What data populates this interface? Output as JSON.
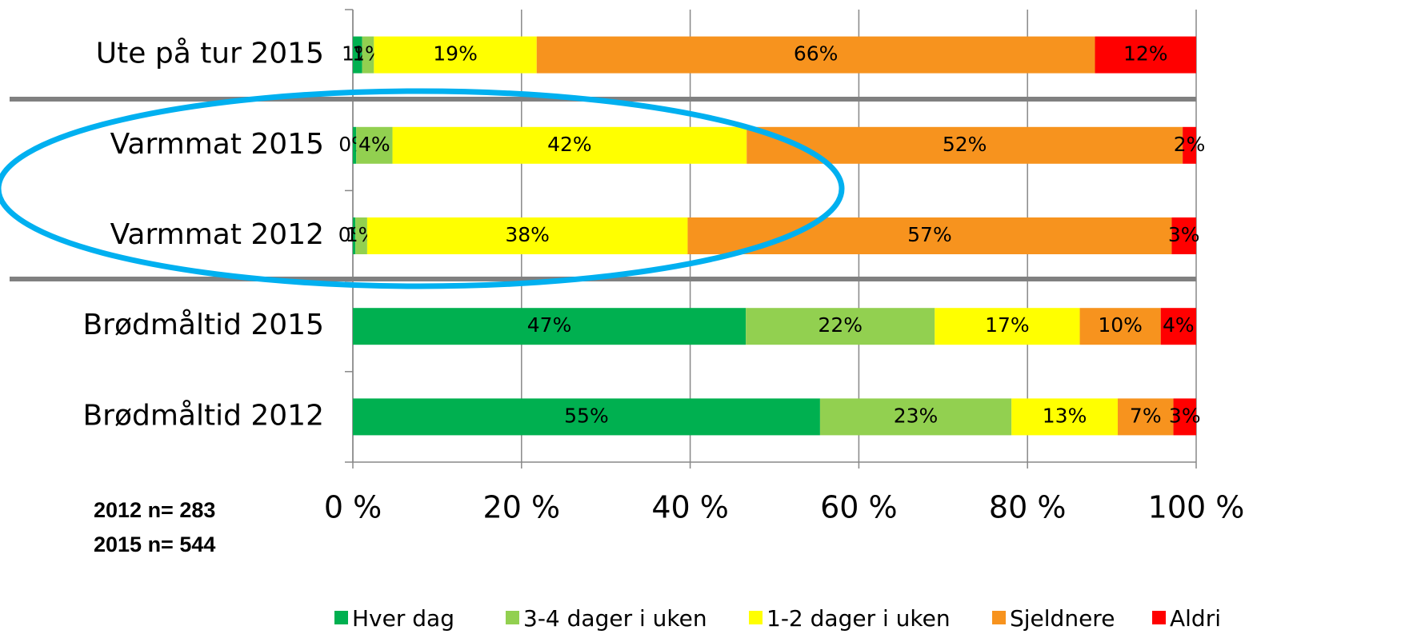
{
  "chart_data": {
    "type": "stacked_bar_horizontal",
    "categories": [
      "Ute på tur 2015",
      "Varmmat 2015",
      "Varmmat 2012",
      "Brødmåltid 2015",
      "Brødmåltid 2012"
    ],
    "series": [
      {
        "name": "Hver dag",
        "color": "#00b050",
        "values": [
          1.1,
          0.4,
          0.3,
          46.6,
          55.4
        ],
        "value_labels": [
          "1%",
          "0%",
          "0%",
          "47%",
          "55%"
        ]
      },
      {
        "name": "3-4 dager i uken",
        "color": "#92d050",
        "values": [
          1.4,
          4.3,
          1.4,
          22.4,
          22.7
        ],
        "value_labels": [
          "1%",
          "4%",
          "1%",
          "22%",
          "23%"
        ]
      },
      {
        "name": "1-2 dager i uken",
        "color": "#ffff00",
        "values": [
          19.3,
          42.0,
          38.0,
          17.2,
          12.6
        ],
        "value_labels": [
          "19%",
          "42%",
          "38%",
          "17%",
          "13%"
        ]
      },
      {
        "name": "Sjeldnere",
        "color": "#f7931e",
        "values": [
          66.2,
          51.7,
          57.4,
          9.6,
          6.6
        ],
        "value_labels": [
          "66%",
          "52%",
          "57%",
          "10%",
          "7%"
        ]
      },
      {
        "name": "Aldri",
        "color": "#ff0000",
        "values": [
          12.0,
          1.6,
          2.9,
          4.2,
          2.7
        ],
        "value_labels": [
          "12%",
          "2%",
          "3%",
          "4%",
          "3%"
        ]
      }
    ],
    "xlim": [
      0,
      100
    ],
    "xticks": [
      {
        "value": 0,
        "label": "0 %"
      },
      {
        "value": 20,
        "label": "20 %"
      },
      {
        "value": 40,
        "label": "40 %"
      },
      {
        "value": 60,
        "label": "60 %"
      },
      {
        "value": 80,
        "label": "80 %"
      },
      {
        "value": 100,
        "label": "100 %"
      }
    ],
    "grid": true,
    "legend": "bottom",
    "annotations": [
      "2012 n= 283",
      "2015 n= 544"
    ]
  }
}
